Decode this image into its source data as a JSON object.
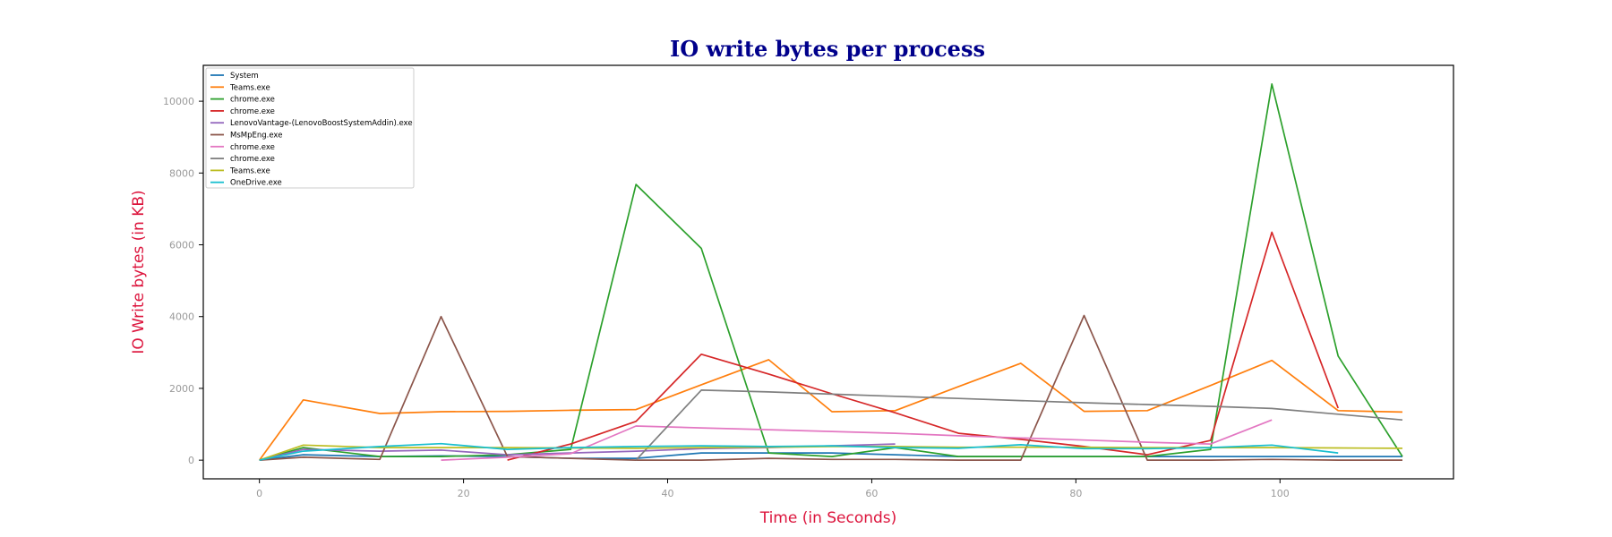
{
  "chart_data": {
    "type": "line",
    "title": "IO write bytes per process",
    "xlabel": "Time (in Seconds)",
    "ylabel": "IO Write bytes (in KB)",
    "xlim": [
      -5.5,
      117
    ],
    "ylim": [
      -520,
      11000
    ],
    "xticks": [
      0,
      20,
      40,
      60,
      80,
      100
    ],
    "yticks": [
      0,
      2000,
      4000,
      6000,
      8000,
      10000
    ],
    "legend_position": "upper-left",
    "grid": false,
    "series": [
      {
        "name": "System",
        "color": "#1f77b4",
        "x": [
          0,
          4.3,
          11.8,
          17.8,
          24.3,
          30.5,
          36.9,
          43.3,
          49.9,
          56.1,
          62.3,
          68.5,
          74.6,
          80.8,
          87.0,
          93.2,
          99.2,
          105.7,
          112.0
        ],
        "y": [
          0,
          150,
          100,
          120,
          100,
          50,
          50,
          200,
          200,
          200,
          150,
          100,
          100,
          100,
          100,
          100,
          100,
          100,
          100
        ]
      },
      {
        "name": "Teams.exe",
        "color": "#ff7f0e",
        "x": [
          0,
          4.3,
          11.8,
          17.8,
          24.3,
          30.5,
          36.9,
          43.3,
          49.9,
          56.1,
          62.3,
          68.5,
          74.6,
          80.8,
          87.0,
          93.2,
          99.2,
          105.7,
          112.0
        ],
        "y": [
          0,
          1680,
          1300,
          1350,
          1360,
          1390,
          1410,
          2100,
          2800,
          1350,
          1380,
          2050,
          2700,
          1360,
          1380,
          2080,
          2780,
          1380,
          1340
        ]
      },
      {
        "name": "chrome.exe",
        "color": "#2ca02c",
        "x": [
          0,
          4.3,
          11.8,
          17.8,
          24.3,
          30.5,
          36.9,
          43.3,
          49.9,
          56.1,
          62.3,
          68.5,
          74.6,
          80.8,
          87.0,
          93.2,
          99.2,
          105.7,
          112.0
        ],
        "y": [
          0,
          350,
          100,
          100,
          150,
          300,
          7680,
          5900,
          200,
          100,
          350,
          100,
          100,
          100,
          100,
          300,
          10480,
          2900,
          100
        ]
      },
      {
        "name": "chrome.exe",
        "color": "#d62728",
        "x": [
          24.3,
          30.5,
          36.9,
          43.3,
          49.9,
          56.1,
          62.3,
          68.5,
          74.6,
          80.8,
          87.0,
          93.2,
          99.2,
          105.7
        ],
        "y": [
          0,
          450,
          1080,
          2950,
          2400,
          1850,
          1320,
          750,
          580,
          380,
          150,
          550,
          6350,
          1450
        ]
      },
      {
        "name": "LenovoVantage-(LenovoBoostSystemAddin).exe",
        "color": "#9467bd",
        "x": [
          0,
          4.3,
          11.8,
          17.8,
          24.3,
          30.5,
          36.9,
          43.3,
          49.9,
          56.1,
          62.3
        ],
        "y": [
          0,
          300,
          250,
          280,
          150,
          200,
          250,
          320,
          350,
          400,
          450
        ]
      },
      {
        "name": "MsMpEng.exe",
        "color": "#8c564b",
        "x": [
          0,
          4.3,
          11.8,
          17.8,
          24.3,
          30.5,
          36.9,
          43.3,
          49.9,
          56.1,
          62.3,
          68.5,
          74.6,
          80.8,
          87.0,
          93.2,
          99.2,
          105.7,
          112.0
        ],
        "y": [
          0,
          80,
          20,
          4000,
          100,
          50,
          0,
          0,
          50,
          20,
          20,
          0,
          0,
          4030,
          0,
          0,
          20,
          0,
          0
        ]
      },
      {
        "name": "chrome.exe",
        "color": "#e377c2",
        "x": [
          17.8,
          24.3,
          30.5,
          36.9,
          43.3,
          49.9,
          56.1,
          62.3,
          68.5,
          74.6,
          80.8,
          87.0,
          93.2,
          99.2
        ],
        "y": [
          0,
          80,
          180,
          950,
          900,
          850,
          800,
          750,
          680,
          620,
          560,
          500,
          450,
          1120
        ]
      },
      {
        "name": "chrome.exe",
        "color": "#7f7f7f",
        "x": [
          36.9,
          43.3,
          49.9,
          56.1,
          62.3,
          68.5,
          74.6,
          80.8,
          87.0,
          93.2,
          99.2,
          105.7,
          112.0
        ],
        "y": [
          0,
          1950,
          1900,
          1840,
          1780,
          1720,
          1660,
          1600,
          1550,
          1500,
          1440,
          1280,
          1120
        ]
      },
      {
        "name": "Teams.exe",
        "color": "#bcbd22",
        "x": [
          0,
          4.3,
          11.8,
          17.8,
          24.3,
          30.5,
          36.9,
          43.3,
          49.9,
          56.1,
          62.3,
          68.5,
          74.6,
          80.8,
          87.0,
          93.2,
          99.2,
          105.7,
          112.0
        ],
        "y": [
          0,
          420,
          350,
          350,
          350,
          340,
          330,
          350,
          360,
          380,
          380,
          360,
          360,
          360,
          350,
          350,
          350,
          340,
          330
        ]
      },
      {
        "name": "OneDrive.exe",
        "color": "#17becf",
        "x": [
          0,
          4.3,
          11.8,
          17.8,
          24.3,
          30.5,
          36.9,
          43.3,
          49.9,
          56.1,
          62.3,
          68.5,
          74.6,
          80.8,
          87.0,
          93.2,
          99.2,
          105.7
        ],
        "y": [
          0,
          250,
          380,
          460,
          300,
          350,
          380,
          400,
          380,
          400,
          350,
          330,
          430,
          320,
          320,
          350,
          420,
          200
        ]
      }
    ]
  }
}
